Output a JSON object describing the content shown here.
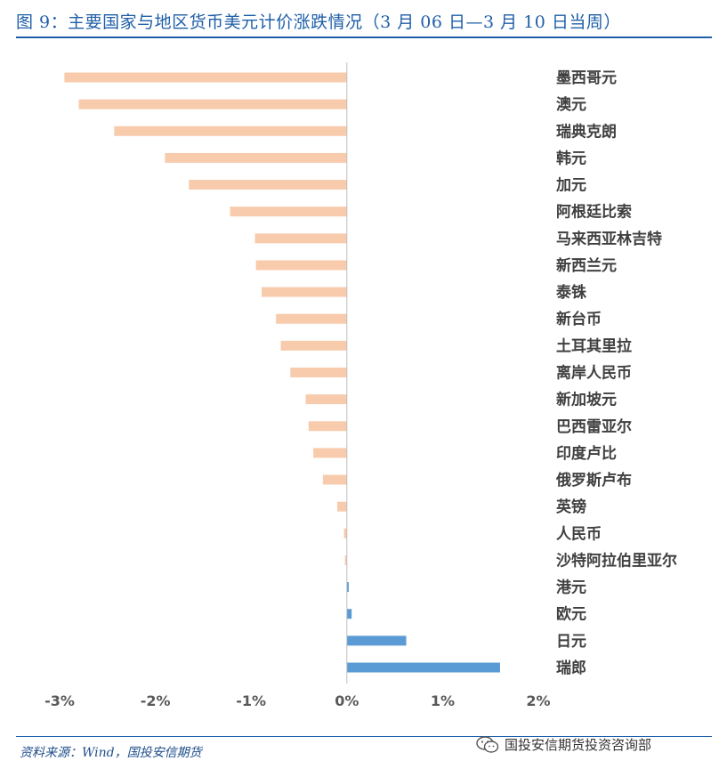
{
  "header": {
    "title": "图 9：主要国家与地区货币美元计价涨跌情况（3 月 06 日—3 月 10 日当周）"
  },
  "footer": {
    "source": "资料来源：Wind，国投安信期货",
    "watermark": "国投安信期货投资咨询部"
  },
  "colors": {
    "negative": "#F8CBAD",
    "positive": "#5B9BD5",
    "axis_text": "#595959",
    "label_text": "#404040",
    "accent": "#1f5fa8"
  },
  "chart_data": {
    "type": "bar",
    "orientation": "horizontal",
    "categories": [
      "墨西哥元",
      "澳元",
      "瑞典克朗",
      "韩元",
      "加元",
      "阿根廷比索",
      "马来西亚林吉特",
      "新西兰元",
      "泰铢",
      "新台币",
      "土耳其里拉",
      "离岸人民币",
      "新加坡元",
      "巴西雷亚尔",
      "印度卢比",
      "俄罗斯卢布",
      "英镑",
      "人民币",
      "沙特阿拉伯里亚尔",
      "港元",
      "欧元",
      "日元",
      "瑞郎"
    ],
    "values": [
      -2.95,
      -2.8,
      -2.43,
      -1.9,
      -1.65,
      -1.22,
      -0.96,
      -0.95,
      -0.89,
      -0.74,
      -0.69,
      -0.59,
      -0.43,
      -0.4,
      -0.35,
      -0.25,
      -0.1,
      -0.03,
      -0.02,
      0.02,
      0.05,
      0.62,
      1.6
    ],
    "xlim": [
      -3,
      2
    ],
    "xticks": [
      "-3%",
      "-2%",
      "-1%",
      "0%",
      "1%",
      "2%"
    ],
    "xtick_values": [
      -3,
      -2,
      -1,
      0,
      1,
      2
    ],
    "grid": false,
    "legend": "none"
  }
}
